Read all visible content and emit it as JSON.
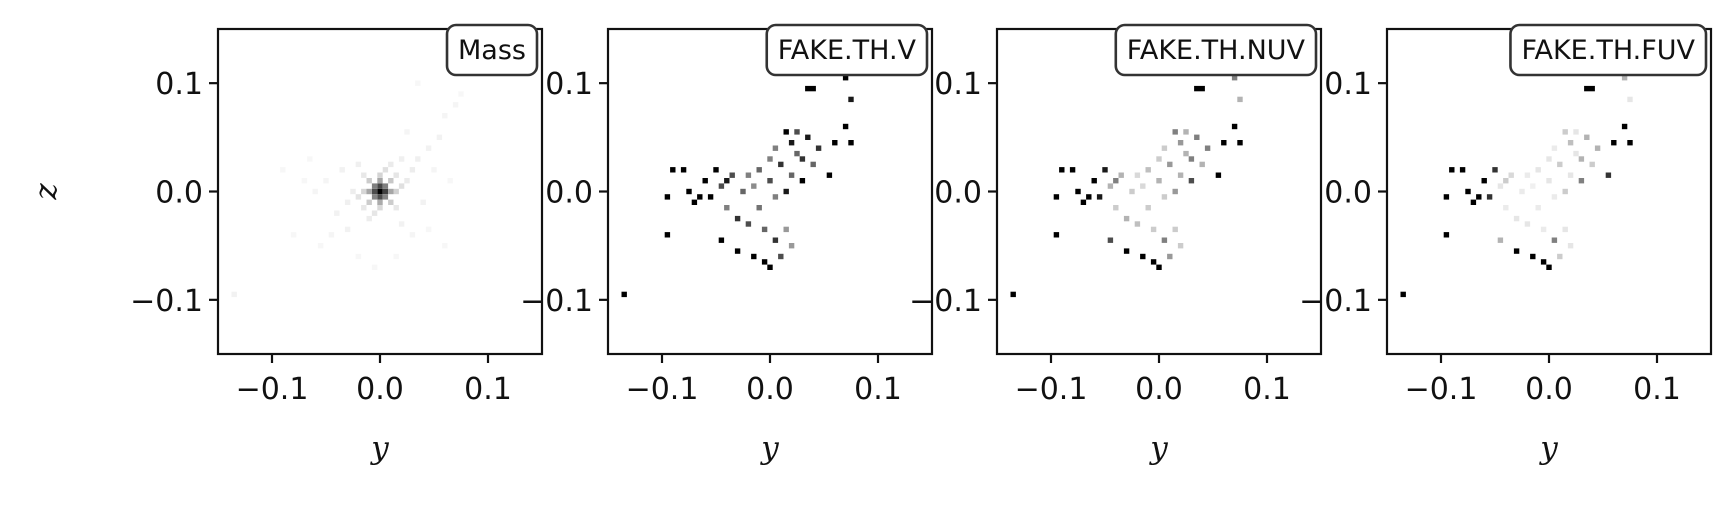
{
  "chart_data": [
    {
      "type": "heatmap",
      "title": "Mass",
      "xlabel": "y",
      "ylabel": "z",
      "xlim": [
        -0.15,
        0.15
      ],
      "ylim": [
        -0.15,
        0.15
      ],
      "xticks": [
        -0.1,
        0.0,
        0.1
      ],
      "yticks": [
        -0.1,
        0.0,
        0.1
      ],
      "xtick_labels": [
        "−0.1",
        "0.0",
        "0.1"
      ],
      "ytick_labels": [
        "−0.1",
        "0.0",
        "0.1"
      ],
      "bin_size": 0.005,
      "colormap": "Greys",
      "cells": [
        [
          0.0,
          0.0,
          1.0
        ],
        [
          0.005,
          0.0,
          0.75
        ],
        [
          -0.005,
          0.0,
          0.7
        ],
        [
          0.0,
          0.005,
          0.72
        ],
        [
          0.0,
          -0.005,
          0.7
        ],
        [
          0.005,
          0.005,
          0.5
        ],
        [
          -0.005,
          0.005,
          0.5
        ],
        [
          0.005,
          -0.005,
          0.48
        ],
        [
          -0.005,
          -0.005,
          0.48
        ],
        [
          0.01,
          0.0,
          0.35
        ],
        [
          -0.01,
          0.0,
          0.35
        ],
        [
          0.0,
          0.01,
          0.35
        ],
        [
          0.0,
          -0.01,
          0.33
        ],
        [
          0.01,
          0.01,
          0.22
        ],
        [
          -0.01,
          0.01,
          0.2
        ],
        [
          0.01,
          -0.01,
          0.2
        ],
        [
          -0.01,
          -0.01,
          0.2
        ],
        [
          0.015,
          0.0,
          0.18
        ],
        [
          -0.015,
          0.0,
          0.16
        ],
        [
          0.0,
          0.015,
          0.17
        ],
        [
          0.0,
          -0.015,
          0.15
        ],
        [
          0.02,
          0.005,
          0.12
        ],
        [
          -0.02,
          -0.005,
          0.11
        ],
        [
          0.005,
          0.02,
          0.12
        ],
        [
          -0.005,
          -0.02,
          0.1
        ],
        [
          0.015,
          0.015,
          0.1
        ],
        [
          -0.015,
          0.015,
          0.09
        ],
        [
          0.015,
          -0.015,
          0.09
        ],
        [
          -0.015,
          -0.015,
          0.09
        ],
        [
          0.025,
          0.01,
          0.08
        ],
        [
          -0.025,
          0.0,
          0.07
        ],
        [
          0.01,
          0.025,
          0.08
        ],
        [
          -0.01,
          -0.025,
          0.07
        ],
        [
          0.03,
          0.02,
          0.07
        ],
        [
          -0.03,
          -0.01,
          0.06
        ],
        [
          0.02,
          0.03,
          0.06
        ],
        [
          -0.02,
          0.025,
          0.06
        ],
        [
          0.035,
          0.03,
          0.06
        ],
        [
          0.045,
          0.04,
          0.05
        ],
        [
          0.055,
          0.05,
          0.05
        ],
        [
          -0.035,
          0.02,
          0.05
        ],
        [
          -0.04,
          -0.02,
          0.05
        ],
        [
          0.02,
          -0.03,
          0.05
        ],
        [
          -0.03,
          -0.035,
          0.05
        ],
        [
          0.04,
          -0.01,
          0.05
        ],
        [
          -0.05,
          0.01,
          0.04
        ],
        [
          0.05,
          0.02,
          0.04
        ],
        [
          0.03,
          -0.04,
          0.04
        ],
        [
          -0.045,
          -0.04,
          0.04
        ],
        [
          -0.06,
          0.0,
          0.04
        ],
        [
          0.06,
          0.07,
          0.04
        ],
        [
          0.07,
          0.08,
          0.04
        ],
        [
          0.025,
          0.055,
          0.04
        ],
        [
          -0.07,
          0.01,
          0.03
        ],
        [
          -0.08,
          -0.04,
          0.03
        ],
        [
          -0.09,
          0.02,
          0.03
        ],
        [
          0.075,
          0.09,
          0.03
        ],
        [
          0.11,
          0.14,
          0.03
        ],
        [
          0.125,
          0.13,
          0.03
        ],
        [
          -0.135,
          -0.095,
          0.05
        ],
        [
          0.035,
          0.1,
          0.03
        ],
        [
          -0.005,
          -0.07,
          0.03
        ],
        [
          0.015,
          -0.06,
          0.03
        ],
        [
          -0.02,
          -0.06,
          0.03
        ],
        [
          0.06,
          -0.05,
          0.03
        ],
        [
          0.045,
          -0.035,
          0.03
        ],
        [
          -0.055,
          -0.05,
          0.03
        ],
        [
          0.065,
          0.01,
          0.03
        ],
        [
          -0.065,
          0.03,
          0.03
        ]
      ]
    },
    {
      "type": "heatmap",
      "title": "FAKE.TH.V",
      "xlabel": "y",
      "ylabel": "",
      "xlim": [
        -0.15,
        0.15
      ],
      "ylim": [
        -0.15,
        0.15
      ],
      "xticks": [
        -0.1,
        0.0,
        0.1
      ],
      "yticks": [
        -0.1,
        0.0,
        0.1
      ],
      "xtick_labels": [
        "−0.1",
        "0.0",
        "0.1"
      ],
      "ytick_labels": [
        "−0.1",
        "0.0",
        "0.1"
      ],
      "bin_size": 0.005,
      "colormap": "Greys",
      "cells": [
        [
          -0.135,
          -0.095,
          1.0
        ],
        [
          -0.095,
          -0.04,
          1.0
        ],
        [
          -0.095,
          -0.005,
          1.0
        ],
        [
          -0.09,
          0.02,
          1.0
        ],
        [
          -0.08,
          0.02,
          1.0
        ],
        [
          -0.075,
          0.0,
          1.0
        ],
        [
          -0.07,
          -0.01,
          1.0
        ],
        [
          -0.065,
          -0.005,
          1.0
        ],
        [
          -0.06,
          0.01,
          1.0
        ],
        [
          -0.055,
          -0.005,
          1.0
        ],
        [
          -0.05,
          0.02,
          1.0
        ],
        [
          -0.045,
          -0.045,
          1.0
        ],
        [
          -0.04,
          0.01,
          0.9
        ],
        [
          -0.035,
          0.015,
          0.7
        ],
        [
          -0.03,
          -0.055,
          1.0
        ],
        [
          -0.03,
          -0.025,
          0.8
        ],
        [
          -0.025,
          0.0,
          0.6
        ],
        [
          -0.02,
          -0.03,
          0.7
        ],
        [
          -0.02,
          0.015,
          0.5
        ],
        [
          -0.015,
          -0.06,
          1.0
        ],
        [
          -0.015,
          0.005,
          0.45
        ],
        [
          -0.01,
          -0.015,
          0.55
        ],
        [
          -0.01,
          0.02,
          0.6
        ],
        [
          -0.005,
          -0.065,
          1.0
        ],
        [
          -0.005,
          -0.035,
          0.6
        ],
        [
          0.0,
          -0.07,
          1.0
        ],
        [
          0.0,
          0.01,
          0.7
        ],
        [
          0.0,
          0.03,
          0.5
        ],
        [
          0.005,
          -0.005,
          0.5
        ],
        [
          0.005,
          -0.045,
          0.8
        ],
        [
          0.01,
          0.025,
          0.8
        ],
        [
          0.01,
          -0.06,
          0.7
        ],
        [
          0.015,
          0.055,
          1.0
        ],
        [
          0.015,
          0.0,
          0.9
        ],
        [
          0.015,
          -0.035,
          0.4
        ],
        [
          0.02,
          0.045,
          0.9
        ],
        [
          0.02,
          0.015,
          0.6
        ],
        [
          0.02,
          -0.05,
          0.4
        ],
        [
          0.025,
          0.055,
          0.7
        ],
        [
          0.025,
          0.035,
          0.6
        ],
        [
          0.03,
          0.01,
          1.0
        ],
        [
          0.03,
          0.03,
          0.8
        ],
        [
          0.035,
          0.095,
          1.0
        ],
        [
          0.035,
          0.05,
          0.9
        ],
        [
          0.04,
          0.095,
          1.0
        ],
        [
          0.04,
          0.025,
          0.6
        ],
        [
          0.045,
          0.04,
          0.8
        ],
        [
          0.055,
          0.015,
          1.0
        ],
        [
          0.06,
          0.045,
          1.0
        ],
        [
          0.07,
          0.105,
          1.0
        ],
        [
          0.07,
          0.06,
          1.0
        ],
        [
          0.075,
          0.085,
          0.9
        ],
        [
          0.075,
          0.045,
          1.0
        ],
        [
          0.115,
          0.14,
          1.0
        ],
        [
          0.125,
          0.13,
          1.0
        ],
        [
          -0.04,
          -0.015,
          0.5
        ],
        [
          -0.045,
          0.005,
          0.7
        ],
        [
          0.005,
          0.04,
          0.5
        ]
      ]
    },
    {
      "type": "heatmap",
      "title": "FAKE.TH.NUV",
      "xlabel": "y",
      "ylabel": "",
      "xlim": [
        -0.15,
        0.15
      ],
      "ylim": [
        -0.15,
        0.15
      ],
      "xticks": [
        -0.1,
        0.0,
        0.1
      ],
      "yticks": [
        -0.1,
        0.0,
        0.1
      ],
      "xtick_labels": [
        "−0.1",
        "0.0",
        "0.1"
      ],
      "ytick_labels": [
        "−0.1",
        "0.0",
        "0.1"
      ],
      "bin_size": 0.005,
      "colormap": "Greys",
      "cells": [
        [
          -0.135,
          -0.095,
          1.0
        ],
        [
          -0.095,
          -0.04,
          1.0
        ],
        [
          -0.095,
          -0.005,
          1.0
        ],
        [
          -0.09,
          0.02,
          1.0
        ],
        [
          -0.08,
          0.02,
          1.0
        ],
        [
          -0.075,
          0.0,
          1.0
        ],
        [
          -0.07,
          -0.01,
          1.0
        ],
        [
          -0.065,
          -0.005,
          1.0
        ],
        [
          -0.06,
          0.01,
          1.0
        ],
        [
          -0.055,
          -0.005,
          0.9
        ],
        [
          -0.05,
          0.02,
          0.9
        ],
        [
          -0.045,
          -0.045,
          0.7
        ],
        [
          -0.04,
          0.01,
          0.5
        ],
        [
          -0.035,
          0.015,
          0.3
        ],
        [
          -0.03,
          -0.055,
          1.0
        ],
        [
          -0.03,
          -0.025,
          0.3
        ],
        [
          -0.025,
          0.0,
          0.2
        ],
        [
          -0.02,
          -0.03,
          0.25
        ],
        [
          -0.02,
          0.015,
          0.15
        ],
        [
          -0.015,
          -0.06,
          1.0
        ],
        [
          -0.015,
          0.005,
          0.15
        ],
        [
          -0.01,
          -0.015,
          0.2
        ],
        [
          -0.01,
          0.02,
          0.25
        ],
        [
          -0.005,
          -0.065,
          1.0
        ],
        [
          -0.005,
          -0.035,
          0.2
        ],
        [
          0.0,
          -0.07,
          1.0
        ],
        [
          0.0,
          0.01,
          0.3
        ],
        [
          0.0,
          0.03,
          0.2
        ],
        [
          0.005,
          -0.005,
          0.2
        ],
        [
          0.005,
          -0.045,
          0.5
        ],
        [
          0.01,
          0.025,
          0.4
        ],
        [
          0.01,
          -0.06,
          0.4
        ],
        [
          0.015,
          0.055,
          0.5
        ],
        [
          0.015,
          0.0,
          0.4
        ],
        [
          0.015,
          -0.035,
          0.2
        ],
        [
          0.02,
          0.045,
          0.4
        ],
        [
          0.02,
          0.015,
          0.3
        ],
        [
          0.02,
          -0.05,
          0.2
        ],
        [
          0.025,
          0.055,
          0.3
        ],
        [
          0.025,
          0.035,
          0.3
        ],
        [
          0.03,
          0.01,
          0.7
        ],
        [
          0.03,
          0.03,
          0.5
        ],
        [
          0.035,
          0.095,
          1.0
        ],
        [
          0.035,
          0.05,
          0.5
        ],
        [
          0.04,
          0.095,
          1.0
        ],
        [
          0.04,
          0.025,
          0.3
        ],
        [
          0.045,
          0.04,
          0.5
        ],
        [
          0.055,
          0.015,
          1.0
        ],
        [
          0.06,
          0.045,
          1.0
        ],
        [
          0.07,
          0.105,
          0.5
        ],
        [
          0.07,
          0.06,
          1.0
        ],
        [
          0.075,
          0.085,
          0.3
        ],
        [
          0.075,
          0.045,
          1.0
        ],
        [
          0.115,
          0.14,
          1.0
        ],
        [
          0.125,
          0.13,
          1.0
        ],
        [
          -0.04,
          -0.015,
          0.2
        ],
        [
          -0.045,
          0.005,
          0.3
        ],
        [
          0.005,
          0.04,
          0.2
        ]
      ]
    },
    {
      "type": "heatmap",
      "title": "FAKE.TH.FUV",
      "xlabel": "y",
      "ylabel": "",
      "xlim": [
        -0.15,
        0.15
      ],
      "ylim": [
        -0.15,
        0.15
      ],
      "xticks": [
        -0.1,
        0.0,
        0.1
      ],
      "yticks": [
        -0.1,
        0.0,
        0.1
      ],
      "xtick_labels": [
        "−0.1",
        "0.0",
        "0.1"
      ],
      "ytick_labels": [
        "−0.1",
        "0.0",
        "0.1"
      ],
      "bin_size": 0.005,
      "colormap": "Greys",
      "cells": [
        [
          -0.135,
          -0.095,
          1.0
        ],
        [
          -0.095,
          -0.04,
          1.0
        ],
        [
          -0.095,
          -0.005,
          1.0
        ],
        [
          -0.09,
          0.02,
          1.0
        ],
        [
          -0.08,
          0.02,
          1.0
        ],
        [
          -0.075,
          0.0,
          1.0
        ],
        [
          -0.07,
          -0.01,
          1.0
        ],
        [
          -0.065,
          -0.005,
          1.0
        ],
        [
          -0.06,
          0.01,
          1.0
        ],
        [
          -0.055,
          -0.005,
          0.8
        ],
        [
          -0.05,
          0.02,
          0.8
        ],
        [
          -0.045,
          -0.045,
          0.3
        ],
        [
          -0.04,
          0.01,
          0.2
        ],
        [
          -0.035,
          0.015,
          0.15
        ],
        [
          -0.03,
          -0.055,
          1.0
        ],
        [
          -0.03,
          -0.025,
          0.1
        ],
        [
          -0.025,
          0.0,
          0.08
        ],
        [
          -0.02,
          -0.03,
          0.1
        ],
        [
          -0.02,
          0.015,
          0.08
        ],
        [
          -0.015,
          -0.06,
          1.0
        ],
        [
          -0.015,
          0.005,
          0.06
        ],
        [
          -0.01,
          -0.015,
          0.08
        ],
        [
          -0.01,
          0.02,
          0.1
        ],
        [
          -0.005,
          -0.065,
          1.0
        ],
        [
          -0.005,
          -0.035,
          0.08
        ],
        [
          0.0,
          -0.07,
          1.0
        ],
        [
          0.0,
          0.01,
          0.1
        ],
        [
          0.0,
          0.03,
          0.1
        ],
        [
          0.005,
          -0.005,
          0.08
        ],
        [
          0.005,
          -0.045,
          0.5
        ],
        [
          0.01,
          0.025,
          0.2
        ],
        [
          0.01,
          -0.06,
          0.2
        ],
        [
          0.015,
          0.055,
          0.2
        ],
        [
          0.015,
          0.0,
          0.2
        ],
        [
          0.015,
          -0.035,
          0.1
        ],
        [
          0.02,
          0.045,
          0.25
        ],
        [
          0.02,
          0.015,
          0.1
        ],
        [
          0.02,
          -0.05,
          0.1
        ],
        [
          0.025,
          0.055,
          0.1
        ],
        [
          0.025,
          0.035,
          0.1
        ],
        [
          0.03,
          0.01,
          0.5
        ],
        [
          0.03,
          0.03,
          0.3
        ],
        [
          0.035,
          0.095,
          1.0
        ],
        [
          0.035,
          0.05,
          0.3
        ],
        [
          0.04,
          0.095,
          1.0
        ],
        [
          0.04,
          0.025,
          0.2
        ],
        [
          0.045,
          0.04,
          0.3
        ],
        [
          0.055,
          0.015,
          0.8
        ],
        [
          0.06,
          0.045,
          1.0
        ],
        [
          0.07,
          0.105,
          0.3
        ],
        [
          0.07,
          0.06,
          1.0
        ],
        [
          0.075,
          0.085,
          0.1
        ],
        [
          0.075,
          0.045,
          1.0
        ],
        [
          0.115,
          0.14,
          1.0
        ],
        [
          0.125,
          0.13,
          1.0
        ],
        [
          -0.04,
          -0.015,
          0.08
        ],
        [
          -0.045,
          0.005,
          0.1
        ],
        [
          0.005,
          0.04,
          0.08
        ]
      ]
    }
  ]
}
